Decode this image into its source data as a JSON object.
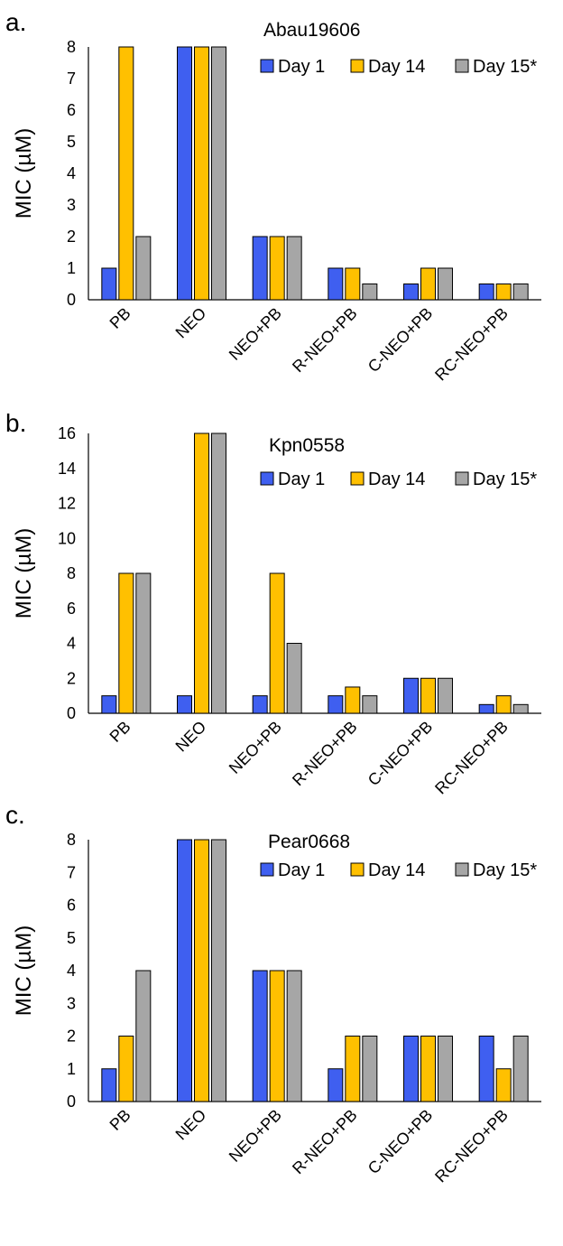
{
  "legend_labels": [
    "Day 1",
    "Day 14",
    "Day 15*"
  ],
  "colors": {
    "day1": "#3F5FF0",
    "day14": "#FFC000",
    "day15": "#A6A6A6",
    "stroke": "#000000",
    "axis": "#000000"
  },
  "chart_data": [
    {
      "panel_label": "a.",
      "type": "bar",
      "title": "Abau19606",
      "xlabel": "",
      "ylabel": "MIC (µM)",
      "ylim": [
        0,
        8
      ],
      "yticks": [
        "0",
        "1",
        "2",
        "3",
        "4",
        "5",
        "6",
        "7",
        "8"
      ],
      "categories": [
        "PB",
        "NEO",
        "NEO+PB",
        "R-NEO+PB",
        "C-NEO+PB",
        "RC-NEO+PB"
      ],
      "legend_position": "top-right",
      "grid": false,
      "series": [
        {
          "name": "Day 1",
          "values": [
            1,
            8,
            2,
            1,
            0.5,
            0.5
          ]
        },
        {
          "name": "Day 14",
          "values": [
            8,
            8,
            2,
            1,
            1,
            0.5
          ]
        },
        {
          "name": "Day 15*",
          "values": [
            2,
            8,
            2,
            0.5,
            1,
            0.5
          ]
        }
      ]
    },
    {
      "panel_label": "b.",
      "type": "bar",
      "title": "Kpn0558",
      "xlabel": "",
      "ylabel": "MIC (µM)",
      "ylim": [
        0,
        16
      ],
      "yticks": [
        "0",
        "2",
        "4",
        "6",
        "8",
        "10",
        "12",
        "14",
        "16"
      ],
      "categories": [
        "PB",
        "NEO",
        "NEO+PB",
        "R-NEO+PB",
        "C-NEO+PB",
        "RC-NEO+PB"
      ],
      "legend_position": "top-right",
      "grid": false,
      "series": [
        {
          "name": "Day 1",
          "values": [
            1,
            1,
            1,
            1,
            2,
            0.5
          ]
        },
        {
          "name": "Day 14",
          "values": [
            8,
            16,
            8,
            1.5,
            2,
            1
          ]
        },
        {
          "name": "Day 15*",
          "values": [
            8,
            16,
            4,
            1,
            2,
            0.5
          ]
        }
      ]
    },
    {
      "panel_label": "c.",
      "type": "bar",
      "title": "Pear0668",
      "xlabel": "",
      "ylabel": "MIC (µM)",
      "ylim": [
        0,
        8
      ],
      "yticks": [
        "0",
        "1",
        "2",
        "3",
        "4",
        "5",
        "6",
        "7",
        "8"
      ],
      "categories": [
        "PB",
        "NEO",
        "NEO+PB",
        "R-NEO+PB",
        "C-NEO+PB",
        "RC-NEO+PB"
      ],
      "legend_position": "top-right",
      "grid": false,
      "series": [
        {
          "name": "Day 1",
          "values": [
            1,
            8,
            4,
            1,
            2,
            2
          ]
        },
        {
          "name": "Day 14",
          "values": [
            2,
            8,
            4,
            2,
            2,
            1
          ]
        },
        {
          "name": "Day 15*",
          "values": [
            4,
            8,
            4,
            2,
            2,
            2
          ]
        }
      ]
    }
  ]
}
